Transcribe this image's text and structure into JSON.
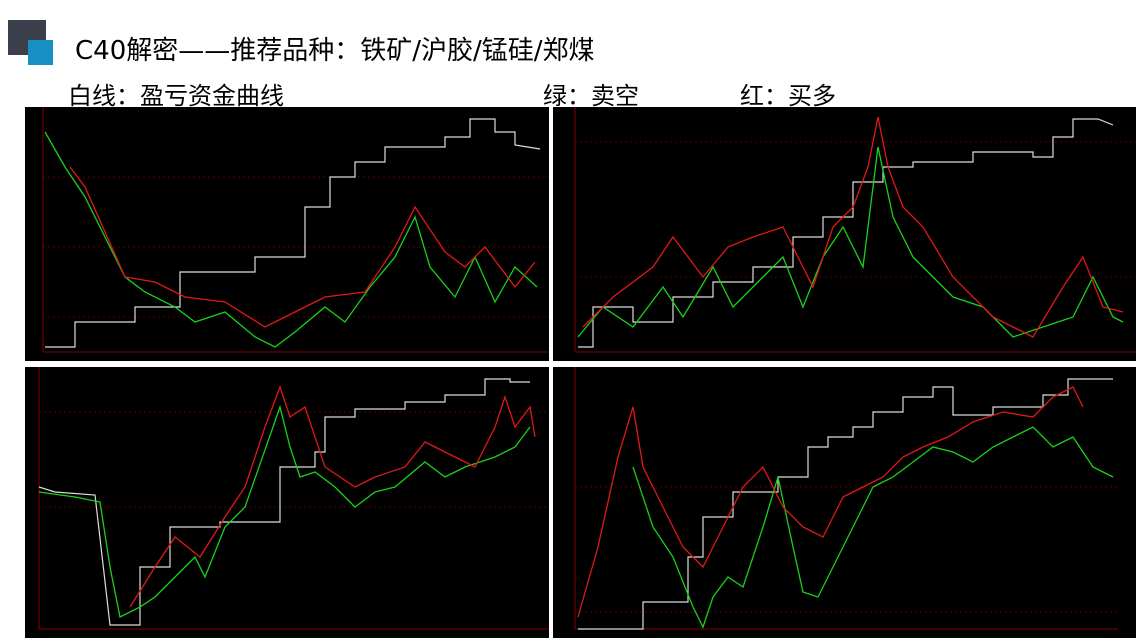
{
  "header": {
    "title": "C40解密——推荐品种：铁矿/沪胶/锰硅/郑煤"
  },
  "legend": {
    "white": "白线：盈亏资金曲线",
    "green": "绿：卖空",
    "red": "红：买多"
  }
}
